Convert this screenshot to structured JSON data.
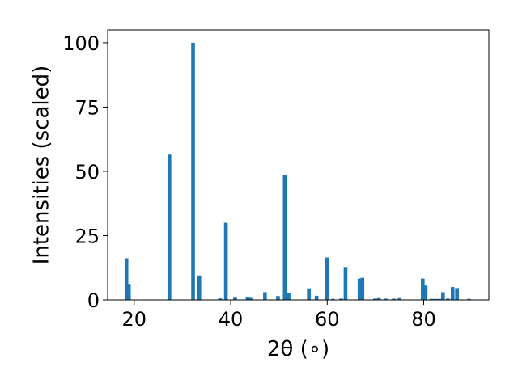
{
  "chart_data": {
    "type": "bar",
    "title": "",
    "xlabel": "2θ (∘)",
    "ylabel": "Intensities (scaled)",
    "xlim": [
      14.5,
      93.5
    ],
    "ylim": [
      0,
      105
    ],
    "xticks": [
      20,
      40,
      60,
      80
    ],
    "yticks": [
      0,
      25,
      50,
      75,
      100
    ],
    "bar_color": "#1f77b4",
    "grid": false,
    "legend": "none",
    "bars": [
      {
        "x": 18.4,
        "y": 16.2
      },
      {
        "x": 18.9,
        "y": 6.2
      },
      {
        "x": 27.3,
        "y": 56.5
      },
      {
        "x": 32.2,
        "y": 100
      },
      {
        "x": 33.5,
        "y": 9.5
      },
      {
        "x": 37.8,
        "y": 0.6
      },
      {
        "x": 39.0,
        "y": 30.0
      },
      {
        "x": 40.9,
        "y": 0.9
      },
      {
        "x": 43.5,
        "y": 1.2
      },
      {
        "x": 44.1,
        "y": 0.8
      },
      {
        "x": 47.1,
        "y": 3.0
      },
      {
        "x": 49.8,
        "y": 1.5
      },
      {
        "x": 51.2,
        "y": 48.5
      },
      {
        "x": 52.0,
        "y": 2.5
      },
      {
        "x": 56.2,
        "y": 4.5
      },
      {
        "x": 57.8,
        "y": 1.6
      },
      {
        "x": 59.9,
        "y": 16.5
      },
      {
        "x": 61.2,
        "y": 0.4
      },
      {
        "x": 62.9,
        "y": 0.5
      },
      {
        "x": 63.8,
        "y": 12.8
      },
      {
        "x": 66.7,
        "y": 8.3
      },
      {
        "x": 67.3,
        "y": 8.6
      },
      {
        "x": 69.9,
        "y": 0.5
      },
      {
        "x": 70.7,
        "y": 0.7
      },
      {
        "x": 72.1,
        "y": 0.5
      },
      {
        "x": 73.8,
        "y": 0.5
      },
      {
        "x": 75.0,
        "y": 0.7
      },
      {
        "x": 79.8,
        "y": 8.3
      },
      {
        "x": 80.4,
        "y": 5.6
      },
      {
        "x": 81.6,
        "y": 0.4
      },
      {
        "x": 82.4,
        "y": 0.4
      },
      {
        "x": 83.2,
        "y": 0.4
      },
      {
        "x": 84.0,
        "y": 3.0
      },
      {
        "x": 85.0,
        "y": 0.5
      },
      {
        "x": 86.0,
        "y": 5.0
      },
      {
        "x": 86.9,
        "y": 4.6
      },
      {
        "x": 89.4,
        "y": 0.4
      }
    ]
  }
}
